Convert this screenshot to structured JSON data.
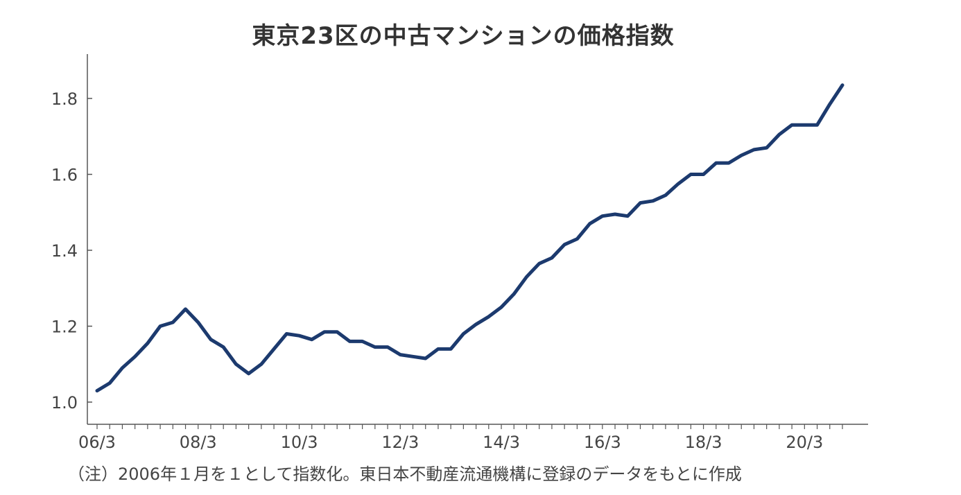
{
  "chart_data": {
    "type": "line",
    "title": "東京23区の中古マンションの価格指数",
    "note": "（注）2006年１月を１として指数化。東日本不動産流通機構に登録のデータをもとに作成",
    "xlabel": "",
    "ylabel": "",
    "x_tick_labels": [
      "06/3",
      "08/3",
      "10/3",
      "12/3",
      "14/3",
      "16/3",
      "18/3",
      "20/3"
    ],
    "y_tick_labels": [
      "1.0",
      "1.2",
      "1.4",
      "1.6",
      "1.8"
    ],
    "y_ticks": [
      1.0,
      1.2,
      1.4,
      1.6,
      1.8
    ],
    "ylim": [
      0.95,
      1.91
    ],
    "grid": false,
    "line_color": "#1c3a6e",
    "x": [
      "06/3",
      "06/6",
      "06/9",
      "06/12",
      "07/3",
      "07/6",
      "07/9",
      "07/12",
      "08/3",
      "08/6",
      "08/9",
      "08/12",
      "09/3",
      "09/6",
      "09/9",
      "09/12",
      "10/3",
      "10/6",
      "10/9",
      "10/12",
      "11/3",
      "11/6",
      "11/9",
      "11/12",
      "12/3",
      "12/6",
      "12/9",
      "12/12",
      "13/3",
      "13/6",
      "13/9",
      "13/12",
      "14/3",
      "14/6",
      "14/9",
      "14/12",
      "15/3",
      "15/6",
      "15/9",
      "15/12",
      "16/3",
      "16/6",
      "16/9",
      "16/12",
      "17/3",
      "17/6",
      "17/9",
      "17/12",
      "18/3",
      "18/6",
      "18/9",
      "18/12",
      "19/3",
      "19/6",
      "19/9",
      "19/12",
      "20/3",
      "20/6",
      "20/9",
      "20/12"
    ],
    "series": [
      {
        "values": [
          1.03,
          1.05,
          1.09,
          1.12,
          1.155,
          1.2,
          1.21,
          1.245,
          1.21,
          1.165,
          1.145,
          1.1,
          1.075,
          1.1,
          1.14,
          1.18,
          1.175,
          1.165,
          1.185,
          1.185,
          1.16,
          1.16,
          1.145,
          1.145,
          1.125,
          1.12,
          1.115,
          1.14,
          1.14,
          1.18,
          1.205,
          1.225,
          1.25,
          1.285,
          1.33,
          1.365,
          1.38,
          1.415,
          1.43,
          1.47,
          1.49,
          1.495,
          1.49,
          1.525,
          1.53,
          1.545,
          1.575,
          1.6,
          1.6,
          1.63,
          1.63,
          1.65,
          1.665,
          1.67,
          1.705,
          1.73,
          1.73,
          1.73,
          1.785,
          1.835
        ]
      }
    ]
  }
}
